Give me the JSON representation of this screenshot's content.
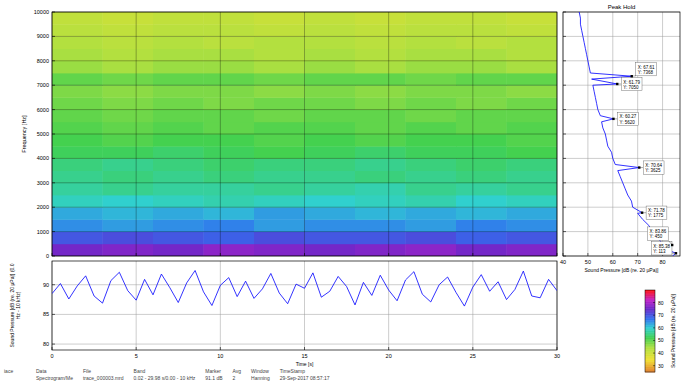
{
  "chart_data": [
    {
      "type": "heatmap",
      "ylabel": "Frequency [Hz]",
      "x_edges": [
        0,
        3,
        6,
        9,
        12,
        15,
        18,
        21,
        24,
        27,
        30
      ],
      "y_edges": [
        0,
        500,
        1000,
        1500,
        2000,
        2500,
        3000,
        3500,
        4000,
        4500,
        5000,
        5500,
        6000,
        6500,
        7000,
        7500,
        8000,
        8500,
        9000,
        9500,
        10000
      ],
      "cells": [
        [
          76,
          77,
          76,
          78,
          77,
          76,
          77,
          78,
          76,
          77
        ],
        [
          70,
          71,
          70,
          69,
          71,
          70,
          70,
          71,
          69,
          70
        ],
        [
          65,
          64,
          65,
          66,
          64,
          65,
          65,
          64,
          66,
          65
        ],
        [
          63,
          62,
          63,
          62,
          64,
          63,
          62,
          63,
          62,
          63
        ],
        [
          59,
          60,
          59,
          58,
          59,
          60,
          59,
          58,
          60,
          59
        ],
        [
          57,
          56,
          57,
          57,
          56,
          57,
          58,
          56,
          57,
          56
        ],
        [
          56,
          55,
          56,
          55,
          56,
          56,
          55,
          56,
          55,
          56
        ],
        [
          55,
          56,
          55,
          54,
          55,
          55,
          56,
          55,
          54,
          55
        ],
        [
          53,
          53,
          54,
          53,
          52,
          53,
          54,
          53,
          53,
          52
        ],
        [
          52,
          51,
          52,
          52,
          51,
          52,
          51,
          52,
          52,
          51
        ],
        [
          51,
          50,
          51,
          50,
          51,
          51,
          50,
          51,
          50,
          51
        ],
        [
          50,
          49,
          50,
          50,
          49,
          50,
          50,
          49,
          50,
          50
        ],
        [
          49,
          48,
          49,
          48,
          49,
          49,
          48,
          49,
          48,
          49
        ],
        [
          48,
          47,
          48,
          48,
          47,
          48,
          47,
          48,
          48,
          47
        ],
        [
          50,
          49,
          50,
          50,
          49,
          50,
          50,
          49,
          50,
          50
        ],
        [
          46,
          45,
          46,
          46,
          45,
          46,
          45,
          46,
          46,
          45
        ],
        [
          45,
          44,
          45,
          45,
          44,
          45,
          44,
          45,
          45,
          44
        ],
        [
          44,
          43,
          44,
          43,
          44,
          44,
          43,
          44,
          43,
          44
        ],
        [
          43,
          42,
          43,
          43,
          42,
          43,
          42,
          43,
          43,
          42
        ],
        [
          42,
          41,
          42,
          42,
          41,
          42,
          41,
          42,
          42,
          41
        ]
      ],
      "xlim": [
        0,
        30
      ],
      "ylim": [
        0,
        10000
      ],
      "xticks": [
        0,
        5,
        10,
        15,
        20,
        25,
        30
      ],
      "yticks": [
        0,
        1000,
        2000,
        3000,
        4000,
        5000,
        6000,
        7000,
        8000,
        9000,
        10000
      ],
      "grid": true,
      "tick_labels": "y",
      "colorbar": {
        "label": "Sound Pressure [dB (re. 20 µPa)]",
        "range": [
          25,
          90
        ],
        "ticks": [
          30,
          40,
          50,
          60,
          70,
          80
        ]
      }
    },
    {
      "type": "line",
      "title": "Peak Hold",
      "xlabel": "Sound Pressure [dB (re. 20 µPa)]",
      "orientation": "horizontal",
      "y": [
        0,
        113,
        250,
        450,
        500,
        750,
        1000,
        1250,
        1500,
        1750,
        1775,
        2000,
        2250,
        2500,
        2750,
        3000,
        3250,
        3500,
        3625,
        3750,
        4000,
        4250,
        4500,
        4750,
        5000,
        5250,
        5500,
        5620,
        5750,
        6000,
        6250,
        6500,
        6750,
        7000,
        7050,
        7250,
        7368,
        7500,
        7750,
        8000,
        8250,
        8500,
        8750,
        9000,
        9250,
        9500,
        9750,
        10000
      ],
      "values": [
        84,
        85.38,
        82,
        83.86,
        80,
        78,
        76,
        74.5,
        72,
        70,
        71.78,
        68,
        67.5,
        66,
        65,
        64,
        63,
        62,
        70.64,
        61,
        60,
        59.5,
        58,
        57.5,
        57,
        56,
        55.5,
        60.27,
        55,
        54,
        53.5,
        53,
        52.5,
        52,
        61.79,
        51.5,
        67.61,
        51,
        50.5,
        50,
        49.5,
        49,
        48.5,
        48,
        47.5,
        47,
        47,
        46.5
      ],
      "color": "#0000ff",
      "xlim": [
        40,
        87
      ],
      "xticks": [
        40,
        50,
        60,
        70,
        80
      ],
      "ylim": [
        0,
        10000
      ],
      "yticks": [
        0,
        1000,
        2000,
        3000,
        4000,
        5000,
        6000,
        7000,
        8000,
        9000,
        10000
      ],
      "grid": true,
      "tick_labels": "x",
      "annotations": [
        {
          "x": 67.61,
          "y": 7368,
          "text": [
            "X: 67.61",
            "Y: 7368"
          ]
        },
        {
          "x": 61.79,
          "y": 7050,
          "text": [
            "X: 61.79",
            "Y: 7050"
          ]
        },
        {
          "x": 60.27,
          "y": 5620,
          "text": [
            "X: 60.27",
            "Y: 5620"
          ]
        },
        {
          "x": 70.64,
          "y": 3625,
          "text": [
            "X: 70.64",
            "Y: 3625"
          ]
        },
        {
          "x": 71.78,
          "y": 1775,
          "text": [
            "X: 71.78",
            "Y: 1775"
          ]
        },
        {
          "x": 83.86,
          "y": 450,
          "text": [
            "X: 83.86",
            "Y: 450"
          ]
        },
        {
          "x": 85.38,
          "y": 113,
          "text": [
            "X: 85.38",
            "Y: 113"
          ]
        }
      ]
    },
    {
      "type": "line",
      "xlabel": "Time [s]",
      "ylabel": "Sound Pressure [dB (re. 20 µPa)] (0.0 Hz - 10 kHz)",
      "x": [
        0,
        0.5,
        1,
        1.5,
        2,
        2.5,
        3,
        3.5,
        4,
        4.5,
        5,
        5.5,
        6,
        6.5,
        7,
        7.5,
        8,
        8.5,
        9,
        9.5,
        10,
        10.5,
        11,
        11.5,
        12,
        12.5,
        13,
        13.5,
        14,
        14.5,
        15,
        15.5,
        16,
        16.5,
        17,
        17.5,
        18,
        18.5,
        19,
        19.5,
        20,
        20.5,
        21,
        21.5,
        22,
        22.5,
        23,
        23.5,
        24,
        24.5,
        25,
        25.5,
        26,
        26.5,
        27,
        27.5,
        28,
        28.5,
        29,
        29.5,
        30
      ],
      "values": [
        88.5,
        90.2,
        87.6,
        89.8,
        91.5,
        88.1,
        86.9,
        90.7,
        92.1,
        89.0,
        87.4,
        90.9,
        88.3,
        91.8,
        89.5,
        87.0,
        90.3,
        92.4,
        88.8,
        86.5,
        89.9,
        91.2,
        88.0,
        90.6,
        87.7,
        89.3,
        91.9,
        88.6,
        86.8,
        90.1,
        89.4,
        92.0,
        87.9,
        88.9,
        91.4,
        89.7,
        86.6,
        90.4,
        88.2,
        91.6,
        89.1,
        87.3,
        90.8,
        92.2,
        88.4,
        87.1,
        90.0,
        91.3,
        88.7,
        86.4,
        89.6,
        91.7,
        88.9,
        90.5,
        87.5,
        89.2,
        92.3,
        88.1,
        87.8,
        90.9,
        89.0
      ],
      "color": "#0000ff",
      "xlim": [
        0,
        30
      ],
      "xticks": [
        0,
        5,
        10,
        15,
        20,
        25,
        30
      ],
      "ylim": [
        79,
        94
      ],
      "yticks": [
        80,
        85,
        90
      ],
      "grid": true
    }
  ],
  "footer": {
    "source": "iace",
    "items": [
      {
        "label": "Data",
        "value": "Spectrogram/Me"
      },
      {
        "label": "File",
        "value": "trace_000003.mrd"
      },
      {
        "label": "Band",
        "value": "0.02 - 29.98 s/0.00 - 10 kHz"
      },
      {
        "label": "Marker",
        "value": "91.1 dB"
      },
      {
        "label": "Avg",
        "value": "2"
      },
      {
        "label": "Window",
        "value": "Hanning"
      },
      {
        "label": "TimeStamp",
        "value": "29-Sep-2017 08:57:17"
      }
    ]
  }
}
